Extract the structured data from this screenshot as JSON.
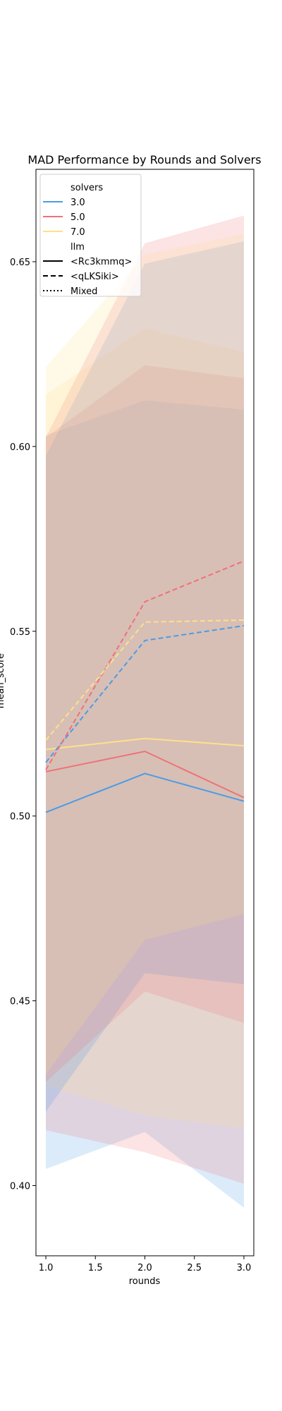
{
  "chart_data": {
    "type": "line",
    "title": "MAD Performance by Rounds and Solvers",
    "xlabel": "rounds",
    "ylabel": "mean_score",
    "xlim": [
      0.9,
      3.1
    ],
    "ylim": [
      0.381,
      0.675
    ],
    "x_ticks": [
      "1.0",
      "1.5",
      "2.0",
      "2.5",
      "3.0"
    ],
    "y_ticks": [
      "0.40",
      "0.45",
      "0.50",
      "0.55",
      "0.60",
      "0.65"
    ],
    "grid": false,
    "legend": {
      "placement": "top-left",
      "hue_title": "solvers",
      "style_title": "llm",
      "hue_entries": [
        {
          "label": "3.0",
          "color": "#4c9be8"
        },
        {
          "label": "5.0",
          "color": "#f07178"
        },
        {
          "label": "7.0",
          "color": "#ffe08a"
        }
      ],
      "style_entries": [
        {
          "label": "<Rc3kmmq>",
          "dash": "solid"
        },
        {
          "label": "<qLKSiki>",
          "dash": "dashed"
        },
        {
          "label": "Mixed",
          "dash": "dotted"
        }
      ]
    },
    "x": [
      1.0,
      2.0,
      3.0
    ],
    "series": [
      {
        "solvers": "3.0",
        "llm": "<Rc3kmmq>",
        "color": "#4c9be8",
        "dash": "solid",
        "values": [
          0.501,
          0.5115,
          0.504
        ],
        "ci_low": [
          0.4045,
          0.4145,
          0.394
        ],
        "ci_high": [
          0.603,
          0.6125,
          0.61
        ]
      },
      {
        "solvers": "5.0",
        "llm": "<Rc3kmmq>",
        "color": "#f07178",
        "dash": "solid",
        "values": [
          0.512,
          0.5175,
          0.505
        ],
        "ci_low": [
          0.415,
          0.409,
          0.4005
        ],
        "ci_high": [
          0.6025,
          0.622,
          0.6185
        ]
      },
      {
        "solvers": "7.0",
        "llm": "<Rc3kmmq>",
        "color": "#ffe08a",
        "dash": "solid",
        "values": [
          0.518,
          0.521,
          0.519
        ],
        "ci_low": [
          0.427,
          0.419,
          0.4155
        ],
        "ci_high": [
          0.614,
          0.632,
          0.6255
        ]
      },
      {
        "solvers": "3.0",
        "llm": "<qLKSiki>",
        "color": "#4c9be8",
        "dash": "dashed",
        "values": [
          0.5145,
          0.5475,
          0.5515
        ],
        "ci_low": [
          0.42,
          0.4575,
          0.4545
        ],
        "ci_high": [
          0.5975,
          0.6495,
          0.6555
        ]
      },
      {
        "solvers": "5.0",
        "llm": "<qLKSiki>",
        "color": "#f07178",
        "dash": "dashed",
        "values": [
          0.5125,
          0.558,
          0.569
        ],
        "ci_low": [
          0.428,
          0.4525,
          0.444
        ],
        "ci_high": [
          0.6025,
          0.655,
          0.6625
        ]
      },
      {
        "solvers": "7.0",
        "llm": "<qLKSiki>",
        "color": "#ffe08a",
        "dash": "dashed",
        "values": [
          0.5205,
          0.5525,
          0.553
        ],
        "ci_low": [
          0.43,
          0.4665,
          0.4735
        ],
        "ci_high": [
          0.6215,
          0.652,
          0.6575
        ]
      }
    ]
  }
}
